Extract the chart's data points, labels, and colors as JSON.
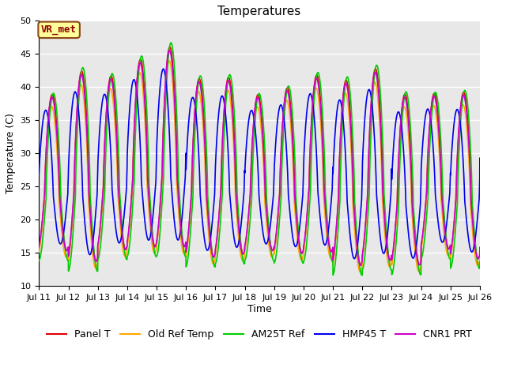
{
  "title": "Temperatures",
  "xlabel": "Time",
  "ylabel": "Temperature (C)",
  "ylim": [
    10,
    50
  ],
  "xtick_labels": [
    "Jul 11",
    "Jul 12",
    "Jul 13",
    "Jul 14",
    "Jul 15",
    "Jul 16",
    "Jul 17",
    "Jul 18",
    "Jul 19",
    "Jul 20",
    "Jul 21",
    "Jul 22",
    "Jul 23",
    "Jul 24",
    "Jul 25",
    "Jul 26"
  ],
  "annotation_text": "VR_met",
  "annotation_color": "#8B0000",
  "annotation_bg": "#FFFF99",
  "annotation_border": "#8B4513",
  "series": [
    {
      "label": "Panel T",
      "color": "#DD0000",
      "lw": 1.2,
      "phase": 0.0,
      "amp": 28.0,
      "base": 14.5
    },
    {
      "label": "Old Ref Temp",
      "color": "#FFA500",
      "lw": 1.2,
      "phase": 0.02,
      "amp": 27.0,
      "base": 13.5
    },
    {
      "label": "AM25T Ref",
      "color": "#00CC00",
      "lw": 1.2,
      "phase": -0.04,
      "amp": 30.0,
      "base": 13.0
    },
    {
      "label": "HMP45 T",
      "color": "#0000EE",
      "lw": 1.2,
      "phase": 0.22,
      "amp": 24.0,
      "base": 15.5
    },
    {
      "label": "CNR1 PRT",
      "color": "#CC00CC",
      "lw": 1.2,
      "phase": 0.01,
      "amp": 27.5,
      "base": 14.5
    }
  ],
  "bg_color": "#E8E8E8",
  "grid_color": "#FFFFFF",
  "title_fontsize": 11,
  "label_fontsize": 9,
  "tick_fontsize": 8,
  "legend_fontsize": 9,
  "figwidth": 6.4,
  "figheight": 4.8,
  "dpi": 100
}
